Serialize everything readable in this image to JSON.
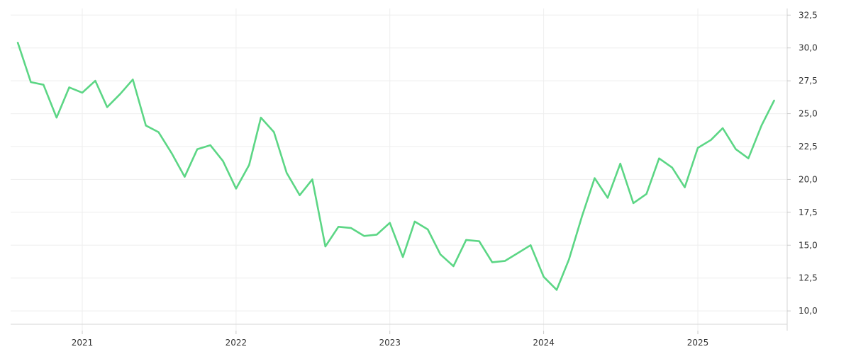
{
  "chart_data": {
    "type": "line",
    "title": "",
    "xlabel": "",
    "ylabel": "",
    "grid": true,
    "y_axis_side": "right",
    "xlim": [
      "2020-07-15",
      "2025-08-01"
    ],
    "ylim": [
      8.5,
      33.0
    ],
    "x_ticks": [
      {
        "date": "2021-01-01",
        "label": "2021"
      },
      {
        "date": "2022-01-01",
        "label": "2022"
      },
      {
        "date": "2023-01-01",
        "label": "2023"
      },
      {
        "date": "2024-01-01",
        "label": "2024"
      },
      {
        "date": "2025-01-01",
        "label": "2025"
      }
    ],
    "y_ticks": [
      {
        "value": 10.0,
        "label": "10,0"
      },
      {
        "value": 12.5,
        "label": "12,5"
      },
      {
        "value": 15.0,
        "label": "15,0"
      },
      {
        "value": 17.5,
        "label": "17,5"
      },
      {
        "value": 20.0,
        "label": "20,0"
      },
      {
        "value": 22.5,
        "label": "22,5"
      },
      {
        "value": 25.0,
        "label": "25,0"
      },
      {
        "value": 27.5,
        "label": "27,5"
      },
      {
        "value": 30.0,
        "label": "30,0"
      },
      {
        "value": 32.5,
        "label": "32,5"
      }
    ],
    "series": [
      {
        "color": "#5cd685",
        "x": [
          "2020-08-01",
          "2020-09-01",
          "2020-10-01",
          "2020-11-01",
          "2020-12-01",
          "2021-01-01",
          "2021-02-01",
          "2021-03-01",
          "2021-04-01",
          "2021-05-01",
          "2021-06-01",
          "2021-07-01",
          "2021-08-01",
          "2021-09-01",
          "2021-10-01",
          "2021-11-01",
          "2021-12-01",
          "2022-01-01",
          "2022-02-01",
          "2022-03-01",
          "2022-04-01",
          "2022-05-01",
          "2022-06-01",
          "2022-07-01",
          "2022-08-01",
          "2022-09-01",
          "2022-10-01",
          "2022-11-01",
          "2022-12-01",
          "2023-01-01",
          "2023-02-01",
          "2023-03-01",
          "2023-04-01",
          "2023-05-01",
          "2023-06-01",
          "2023-07-01",
          "2023-08-01",
          "2023-09-01",
          "2023-10-01",
          "2023-11-01",
          "2023-12-01",
          "2024-01-01",
          "2024-02-01",
          "2024-03-01",
          "2024-04-01",
          "2024-05-01",
          "2024-06-01",
          "2024-07-01",
          "2024-08-01",
          "2024-09-01",
          "2024-10-01",
          "2024-11-01",
          "2024-12-01",
          "2025-01-01",
          "2025-02-01",
          "2025-03-01",
          "2025-04-01",
          "2025-05-01",
          "2025-06-01",
          "2025-07-01"
        ],
        "values": [
          30.4,
          27.4,
          27.2,
          24.7,
          27.0,
          26.6,
          27.5,
          25.5,
          26.5,
          27.6,
          24.1,
          23.6,
          22.0,
          20.2,
          22.3,
          22.6,
          21.4,
          19.3,
          21.1,
          24.7,
          23.6,
          20.5,
          18.8,
          20.0,
          14.9,
          16.4,
          16.3,
          15.7,
          15.8,
          16.7,
          14.1,
          16.8,
          16.2,
          14.3,
          13.4,
          15.4,
          15.3,
          13.7,
          13.8,
          14.4,
          15.0,
          12.6,
          11.6,
          13.9,
          17.2,
          20.1,
          18.6,
          21.2,
          18.2,
          18.9,
          21.6,
          20.9,
          19.4,
          22.4,
          23.0,
          23.9,
          22.3,
          21.6,
          24.1,
          26.0
        ]
      }
    ]
  }
}
